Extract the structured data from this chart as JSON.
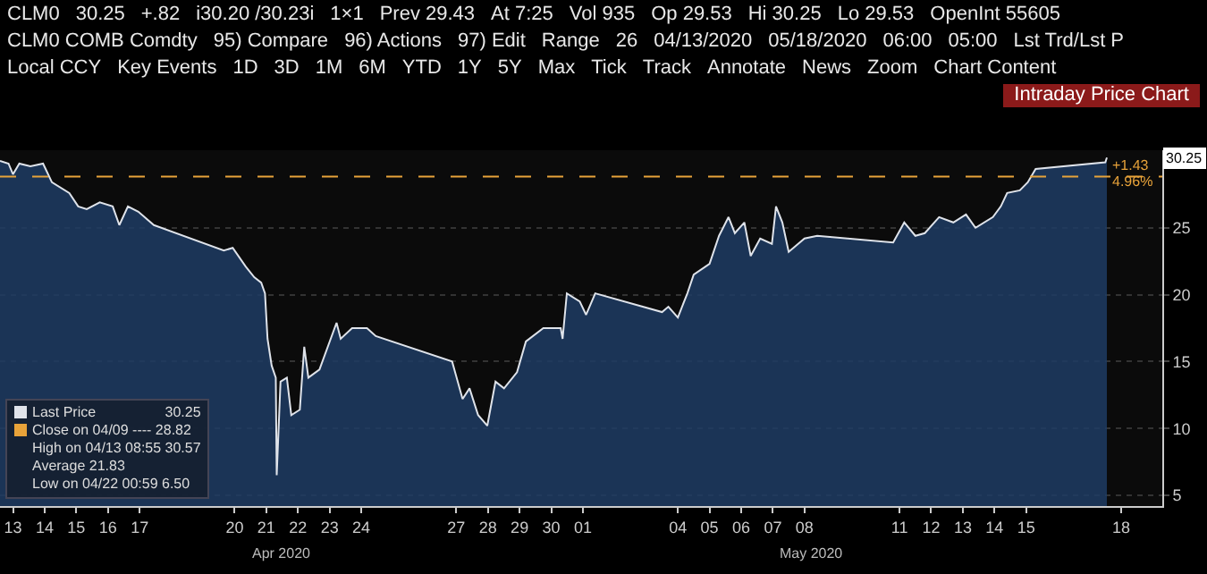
{
  "chart_data": {
    "type": "area",
    "title": "Intraday Price Chart",
    "x": [
      "2020-04-13T02:10",
      "2020-04-13T08:38",
      "2020-04-13T12:00",
      "2020-04-13T16:48",
      "2020-04-14T01:12",
      "2020-04-14T10:48",
      "2020-04-14T17:31",
      "2020-04-15T06:43",
      "2020-04-15T13:26",
      "2020-04-15T19:55",
      "2020-04-16T05:46",
      "2020-04-16T15:36",
      "2020-04-16T20:38",
      "2020-04-17T03:07",
      "2020-04-17T11:02",
      "2020-04-17T22:48",
      "2020-04-20T03:50",
      "2020-04-20T10:34",
      "2020-04-20T20:24",
      "2020-04-21T02:53",
      "2020-04-21T08:10",
      "2020-04-21T11:02",
      "2020-04-21T12:58",
      "2020-04-21T16:05",
      "2020-04-21T19:12",
      "2020-04-21T19:55",
      "2020-04-21T22:48",
      "2020-04-22T03:36",
      "2020-04-22T06:58",
      "2020-04-22T13:26",
      "2020-04-22T16:48",
      "2020-04-22T19:55",
      "2020-04-23T04:19",
      "2020-04-23T17:17",
      "2020-04-23T20:24",
      "2020-04-24T05:02",
      "2020-04-24T16:19",
      "2020-04-24T23:02",
      "2020-04-27T08:53",
      "2020-04-27T16:48",
      "2020-04-27T22:05",
      "2020-04-28T04:34",
      "2020-04-28T11:31",
      "2020-04-28T17:46",
      "2020-04-29T00:14",
      "2020-04-29T10:05",
      "2020-04-29T16:48",
      "2020-04-30T06:00",
      "2020-04-30T19:12",
      "2020-04-30T20:38",
      "2020-04-30T23:50",
      "2020-05-01T09:36",
      "2020-05-01T14:24",
      "2020-05-01T21:22",
      "2020-05-04T00:00",
      "2020-05-04T04:48",
      "2020-05-04T12:00",
      "2020-05-04T19:12",
      "2020-05-05T00:00",
      "2020-05-05T12:00",
      "2020-05-05T19:12",
      "2020-05-06T02:24",
      "2020-05-06T07:12",
      "2020-05-06T14:24",
      "2020-05-06T19:12",
      "2020-05-07T02:24",
      "2020-05-07T11:17",
      "2020-05-07T14:24",
      "2020-05-07T19:12",
      "2020-05-08T00:00",
      "2020-05-08T12:00",
      "2020-05-08T21:36",
      "2020-05-11T07:12",
      "2020-05-11T15:36",
      "2020-05-12T00:00",
      "2020-05-12T07:12",
      "2020-05-12T18:00",
      "2020-05-13T04:48",
      "2020-05-13T14:24",
      "2020-05-13T21:36",
      "2020-05-14T10:48",
      "2020-05-14T16:48",
      "2020-05-14T21:36",
      "2020-05-15T07:12",
      "2020-05-15T13:12",
      "2020-05-15T19:12",
      "2020-05-18T00:00",
      "2020-05-18T01:12"
    ],
    "series": [
      {
        "name": "Last Price",
        "color": "#dfe3ea",
        "values": [
          30.0,
          29.8,
          29.0,
          29.8,
          29.6,
          29.8,
          28.4,
          27.6,
          26.6,
          26.4,
          26.9,
          26.6,
          25.2,
          26.6,
          26.2,
          25.2,
          23.3,
          23.5,
          22.1,
          21.3,
          20.9,
          20.1,
          16.7,
          14.7,
          13.8,
          6.5,
          13.5,
          13.8,
          11.0,
          11.4,
          16.1,
          13.8,
          14.4,
          17.9,
          16.7,
          17.5,
          17.5,
          16.9,
          15.0,
          12.2,
          13.0,
          11.0,
          10.2,
          13.5,
          13.0,
          14.2,
          16.5,
          17.5,
          17.5,
          16.7,
          20.1,
          19.5,
          18.5,
          20.1,
          18.7,
          19.1,
          18.3,
          20.1,
          21.5,
          22.3,
          24.4,
          25.8,
          24.6,
          25.4,
          22.9,
          24.2,
          23.8,
          26.6,
          25.4,
          23.2,
          24.2,
          24.4,
          23.9,
          25.4,
          24.4,
          24.6,
          25.8,
          25.4,
          26.0,
          25.0,
          25.8,
          26.6,
          27.6,
          27.8,
          28.4,
          29.4,
          29.9,
          30.25
        ]
      }
    ],
    "xlim": [
      "2020-04-13T02:10",
      "2020-05-19T19:12"
    ],
    "xticks": [
      {
        "value": "2020-04-13T12:00",
        "label": "13"
      },
      {
        "value": "2020-04-14T12:00",
        "label": "14"
      },
      {
        "value": "2020-04-15T12:00",
        "label": "15"
      },
      {
        "value": "2020-04-16T12:00",
        "label": "16"
      },
      {
        "value": "2020-04-17T12:00",
        "label": "17"
      },
      {
        "value": "2020-04-20T12:00",
        "label": "20"
      },
      {
        "value": "2020-04-21T12:00",
        "label": "21"
      },
      {
        "value": "2020-04-22T12:00",
        "label": "22"
      },
      {
        "value": "2020-04-23T12:00",
        "label": "23"
      },
      {
        "value": "2020-04-24T12:00",
        "label": "24"
      },
      {
        "value": "2020-04-27T12:00",
        "label": "27"
      },
      {
        "value": "2020-04-28T12:00",
        "label": "28"
      },
      {
        "value": "2020-04-29T12:00",
        "label": "29"
      },
      {
        "value": "2020-04-30T12:00",
        "label": "30"
      },
      {
        "value": "2020-05-01T12:00",
        "label": "01"
      },
      {
        "value": "2020-05-04T12:00",
        "label": "04"
      },
      {
        "value": "2020-05-05T12:00",
        "label": "05"
      },
      {
        "value": "2020-05-06T12:00",
        "label": "06"
      },
      {
        "value": "2020-05-07T12:00",
        "label": "07"
      },
      {
        "value": "2020-05-08T12:00",
        "label": "08"
      },
      {
        "value": "2020-05-11T12:00",
        "label": "11"
      },
      {
        "value": "2020-05-12T12:00",
        "label": "12"
      },
      {
        "value": "2020-05-13T12:00",
        "label": "13"
      },
      {
        "value": "2020-05-14T12:00",
        "label": "14"
      },
      {
        "value": "2020-05-15T12:00",
        "label": "15"
      },
      {
        "value": "2020-05-18T12:00",
        "label": "18"
      }
    ],
    "ylim": [
      4.2,
      30.8
    ],
    "yticks": [
      5,
      10,
      15,
      20,
      25
    ],
    "grid": "y",
    "legend": "bottom left",
    "ref_lines": [
      {
        "axis": "y",
        "value": 28.82,
        "label": "Close on 04/09 ---- 28.82",
        "color": "#e8a33a",
        "line_style": "dashed"
      }
    ],
    "annotations": [
      "CLM0",
      "30.25",
      "+.82",
      "i30.20 /30.23i",
      "1×1",
      "Prev 29.43",
      "At 7:25",
      "Vol 935",
      "Op 29.53",
      "Hi 30.25",
      "Lo 29.53",
      "OpenInt 55605",
      "CLM0 COMB Comdty",
      "95) Compare",
      "96) Actions",
      "97) Edit",
      "Range",
      "26",
      "04/13/2020",
      "05/18/2020",
      "06:00",
      "05:00",
      "Lst Trd/Lst P",
      "Local CCY",
      "Key Events",
      "1D",
      "3D",
      "1M",
      "6M",
      "YTD",
      "1Y",
      "5Y",
      "Max",
      "Tick",
      "Track",
      "Annotate",
      "News",
      "Zoom",
      "Chart Content",
      {
        "text": "+1.43",
        "x": "2020-05-18T02:24",
        "y": 29.6
      },
      {
        "text": "4.96%",
        "x": "2020-05-18T02:24",
        "y": 28.5
      },
      {
        "text": "Apr 2020",
        "x": "2020-04-22T00:00"
      },
      {
        "text": "May 2020",
        "x": "2020-05-08T18:00"
      },
      "High on 04/13 08:55 30.57",
      "Average 21.83",
      "Low on 04/22 00:59 6.50"
    ]
  }
}
